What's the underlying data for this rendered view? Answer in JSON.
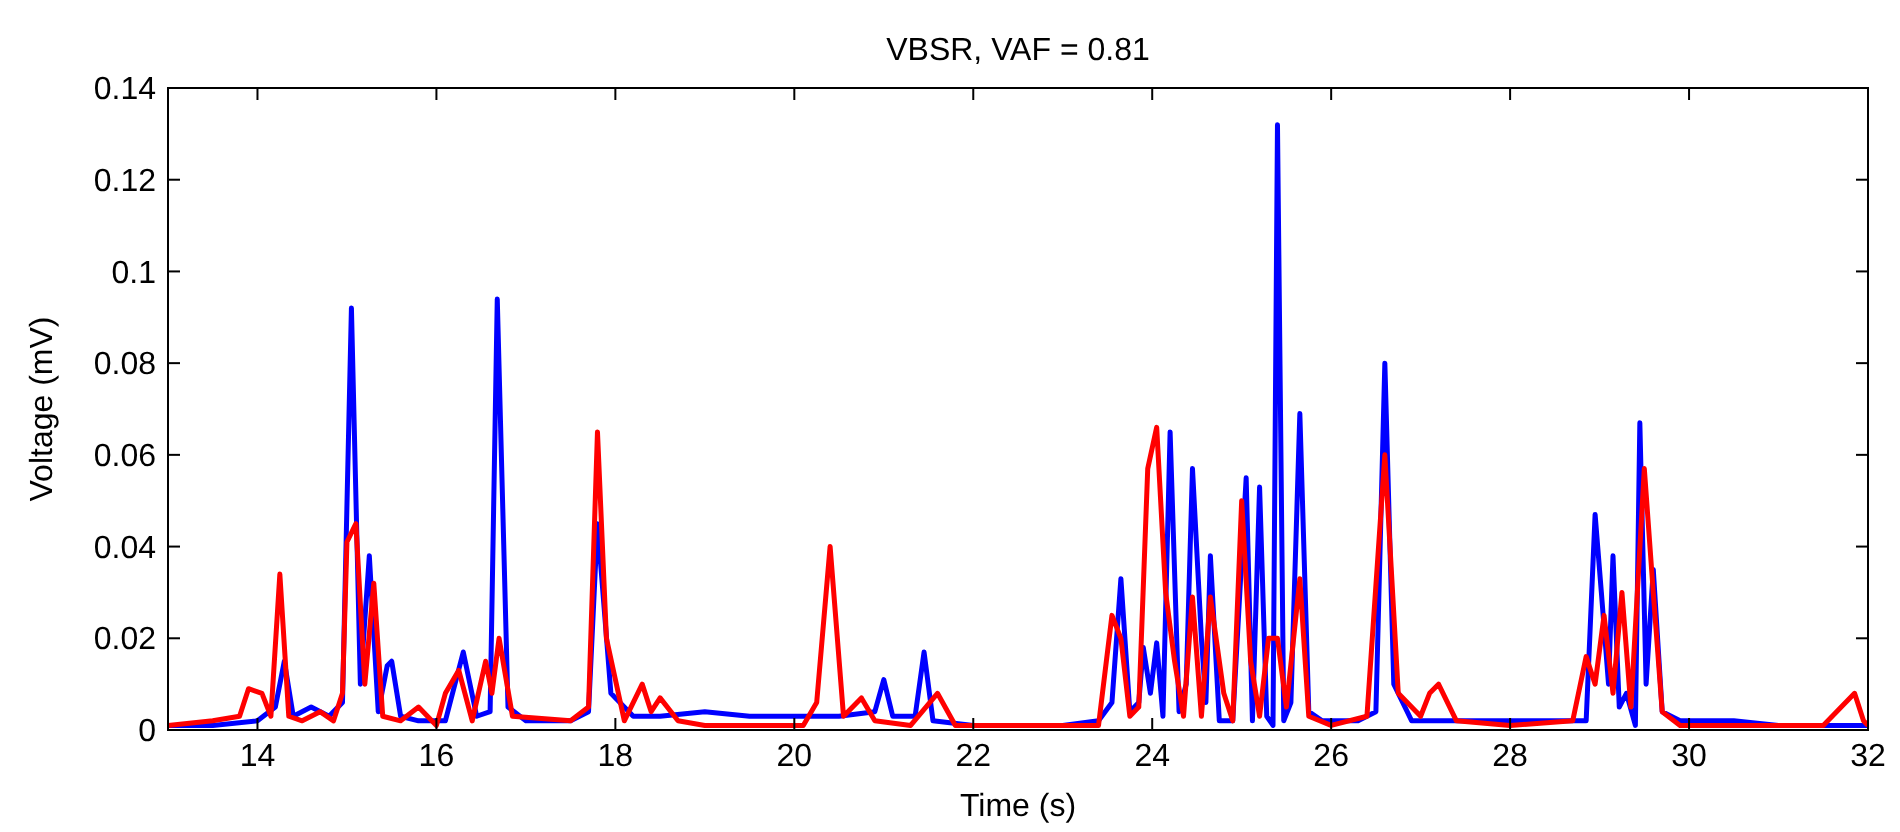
{
  "chart_data": {
    "type": "line",
    "title": "VBSR, VAF = 0.81",
    "xlabel": "Time (s)",
    "ylabel": "Voltage (mV)",
    "xlim": [
      13,
      32
    ],
    "ylim": [
      0,
      0.14
    ],
    "xticks": [
      14,
      16,
      18,
      20,
      22,
      24,
      26,
      28,
      30,
      32
    ],
    "yticks": [
      0,
      0.02,
      0.04,
      0.06,
      0.08,
      0.1,
      0.12,
      0.14
    ],
    "grid": false,
    "series": [
      {
        "color": "#0000ff",
        "x": [
          13,
          13.5,
          14,
          14.2,
          14.3,
          14.4,
          14.6,
          14.8,
          14.95,
          15.05,
          15.15,
          15.25,
          15.35,
          15.45,
          15.5,
          15.6,
          15.8,
          16.1,
          16.3,
          16.45,
          16.6,
          16.68,
          16.8,
          17.0,
          17.5,
          17.7,
          17.8,
          17.95,
          18.2,
          18.5,
          19,
          19.5,
          20,
          20.5,
          20.9,
          21.0,
          21.1,
          21.35,
          21.45,
          21.55,
          22,
          22.5,
          23,
          23.4,
          23.55,
          23.65,
          23.75,
          23.85,
          23.9,
          23.98,
          24.05,
          24.12,
          24.2,
          24.3,
          24.38,
          24.45,
          24.55,
          24.6,
          24.65,
          24.75,
          24.9,
          25.05,
          25.12,
          25.2,
          25.28,
          25.35,
          25.4,
          25.47,
          25.55,
          25.65,
          25.75,
          25.9,
          26.3,
          26.5,
          26.6,
          26.7,
          26.9,
          27.5,
          28,
          28.5,
          28.85,
          28.95,
          29.02,
          29.1,
          29.15,
          29.22,
          29.3,
          29.4,
          29.45,
          29.52,
          29.6,
          29.7,
          29.9,
          30.5,
          31,
          31.5,
          32
        ],
        "values": [
          0.001,
          0.001,
          0.002,
          0.005,
          0.015,
          0.003,
          0.005,
          0.003,
          0.006,
          0.092,
          0.01,
          0.038,
          0.004,
          0.014,
          0.015,
          0.003,
          0.002,
          0.002,
          0.017,
          0.003,
          0.004,
          0.094,
          0.005,
          0.002,
          0.002,
          0.004,
          0.045,
          0.008,
          0.003,
          0.003,
          0.004,
          0.003,
          0.003,
          0.003,
          0.004,
          0.011,
          0.003,
          0.003,
          0.017,
          0.002,
          0.001,
          0.001,
          0.001,
          0.002,
          0.006,
          0.033,
          0.004,
          0.006,
          0.018,
          0.008,
          0.019,
          0.003,
          0.065,
          0.004,
          0.01,
          0.057,
          0.02,
          0.006,
          0.038,
          0.002,
          0.002,
          0.055,
          0.002,
          0.053,
          0.003,
          0.001,
          0.132,
          0.002,
          0.006,
          0.069,
          0.004,
          0.002,
          0.002,
          0.004,
          0.08,
          0.01,
          0.002,
          0.002,
          0.002,
          0.002,
          0.002,
          0.047,
          0.03,
          0.01,
          0.038,
          0.005,
          0.008,
          0.001,
          0.067,
          0.01,
          0.035,
          0.004,
          0.002,
          0.002,
          0.001,
          0.001,
          0.001
        ]
      },
      {
        "color": "#ff0000",
        "x": [
          13,
          13.5,
          13.8,
          13.9,
          14.05,
          14.15,
          14.25,
          14.35,
          14.5,
          14.7,
          14.85,
          14.95,
          15.0,
          15.1,
          15.2,
          15.3,
          15.4,
          15.6,
          15.8,
          16.0,
          16.1,
          16.25,
          16.4,
          16.55,
          16.62,
          16.7,
          16.85,
          17.5,
          17.7,
          17.8,
          17.9,
          18.1,
          18.3,
          18.4,
          18.5,
          18.7,
          19,
          19.5,
          20.1,
          20.25,
          20.4,
          20.55,
          20.75,
          20.9,
          21.3,
          21.6,
          21.8,
          22.5,
          23,
          23.4,
          23.55,
          23.65,
          23.75,
          23.85,
          23.95,
          24.05,
          24.15,
          24.25,
          24.35,
          24.45,
          24.55,
          24.65,
          24.8,
          24.9,
          25.0,
          25.1,
          25.2,
          25.3,
          25.4,
          25.5,
          25.65,
          25.75,
          26.0,
          26.4,
          26.6,
          26.75,
          27.0,
          27.1,
          27.2,
          27.4,
          28,
          28.7,
          28.85,
          28.95,
          29.05,
          29.15,
          29.25,
          29.35,
          29.5,
          29.6,
          29.7,
          29.9,
          30.5,
          31.5,
          31.85,
          31.95,
          32
        ],
        "values": [
          0.001,
          0.002,
          0.003,
          0.009,
          0.008,
          0.003,
          0.034,
          0.003,
          0.002,
          0.004,
          0.002,
          0.008,
          0.041,
          0.045,
          0.01,
          0.032,
          0.003,
          0.002,
          0.005,
          0.001,
          0.008,
          0.013,
          0.002,
          0.015,
          0.008,
          0.02,
          0.003,
          0.002,
          0.005,
          0.065,
          0.02,
          0.002,
          0.01,
          0.004,
          0.007,
          0.002,
          0.001,
          0.001,
          0.001,
          0.006,
          0.04,
          0.003,
          0.007,
          0.002,
          0.001,
          0.008,
          0.001,
          0.001,
          0.001,
          0.001,
          0.025,
          0.02,
          0.003,
          0.005,
          0.057,
          0.066,
          0.03,
          0.015,
          0.003,
          0.029,
          0.003,
          0.029,
          0.008,
          0.002,
          0.05,
          0.015,
          0.003,
          0.02,
          0.02,
          0.005,
          0.033,
          0.003,
          0.001,
          0.003,
          0.06,
          0.008,
          0.003,
          0.008,
          0.01,
          0.002,
          0.001,
          0.002,
          0.016,
          0.01,
          0.025,
          0.008,
          0.03,
          0.005,
          0.057,
          0.03,
          0.004,
          0.001,
          0.001,
          0.001,
          0.008,
          0.002,
          0.001
        ]
      }
    ]
  }
}
